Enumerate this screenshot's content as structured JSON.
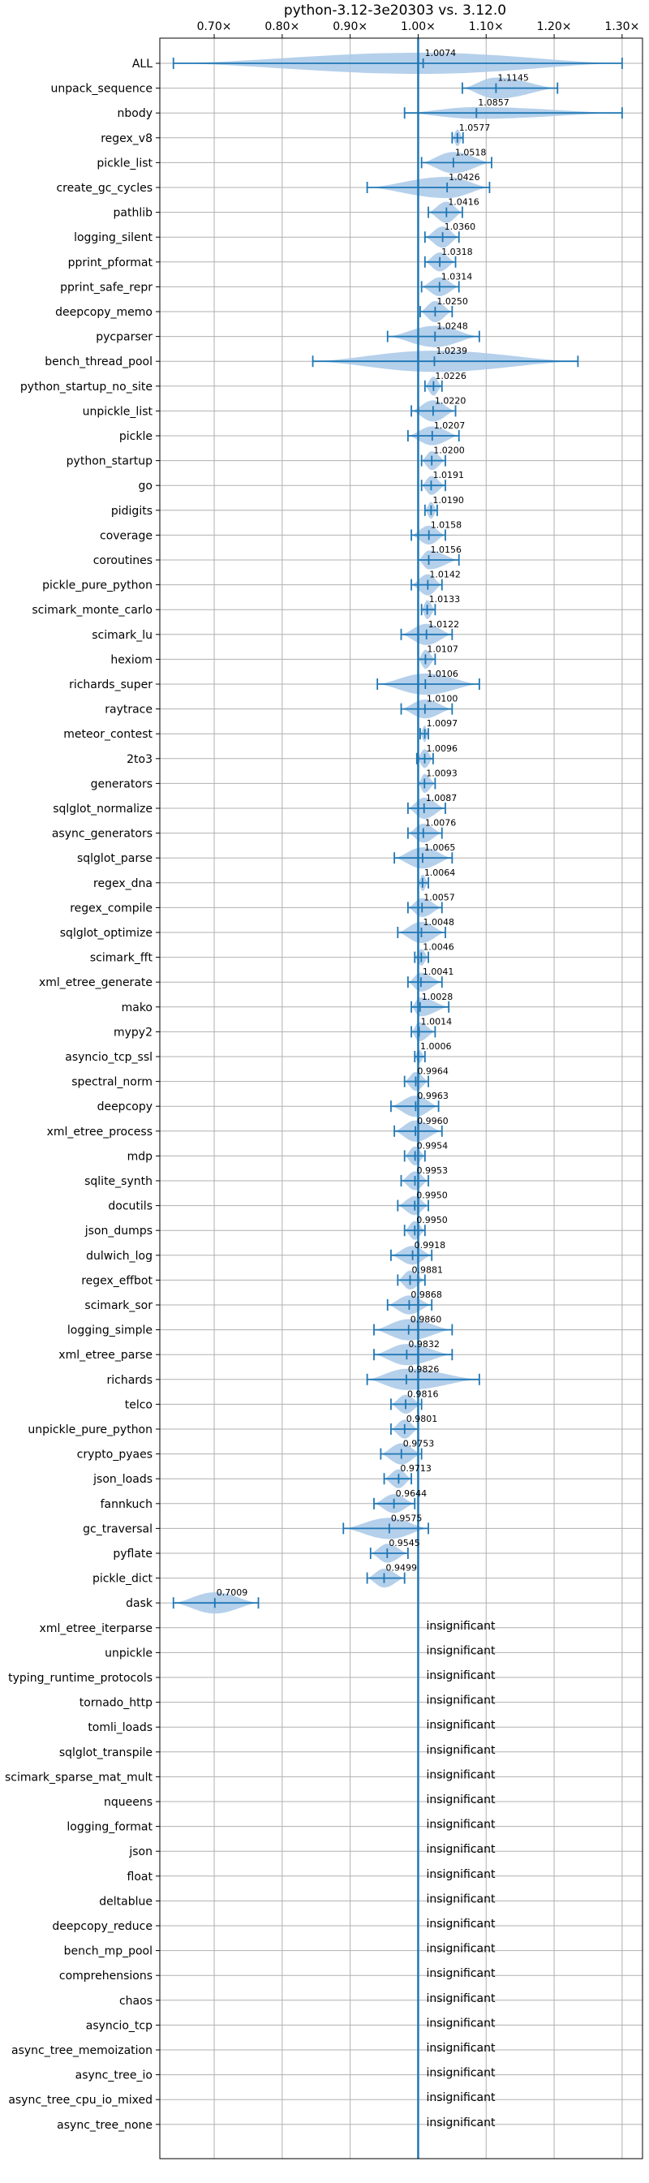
{
  "chart_data": {
    "type": "violin",
    "title": "python-3.12-3e20303 vs. 3.12.0",
    "xlabel": "",
    "ylabel": "",
    "xlim": [
      0.62,
      1.33
    ],
    "xticks": [
      0.7,
      0.8,
      0.9,
      1.0,
      1.1,
      1.2,
      1.3
    ],
    "xtick_labels": [
      "0.70×",
      "0.80×",
      "0.90×",
      "1.00×",
      "1.10×",
      "1.20×",
      "1.30×"
    ],
    "reference_line": 1.0,
    "grid": true,
    "tick_position": "top",
    "insignificant_label": "insignificant",
    "colors": {
      "violin": "#a8c8e8",
      "line": "#1f77b4",
      "grid": "#b0b0b0",
      "text": "#000000"
    },
    "benchmarks": [
      {
        "name": "ALL",
        "value": 1.0074,
        "label": "1.0074",
        "min": 0.64,
        "max": 1.3,
        "width": 0.9
      },
      {
        "name": "unpack_sequence",
        "value": 1.1145,
        "label": "1.1145",
        "min": 1.065,
        "max": 1.205,
        "width": 0.9
      },
      {
        "name": "nbody",
        "value": 1.0857,
        "label": "1.0857",
        "min": 0.98,
        "max": 1.3,
        "width": 0.5
      },
      {
        "name": "regex_v8",
        "value": 1.0577,
        "label": "1.0577",
        "min": 1.05,
        "max": 1.066,
        "width": 0.7
      },
      {
        "name": "pickle_list",
        "value": 1.0518,
        "label": "1.0518",
        "min": 1.005,
        "max": 1.108,
        "width": 0.9
      },
      {
        "name": "create_gc_cycles",
        "value": 1.0426,
        "label": "1.0426",
        "min": 0.925,
        "max": 1.105,
        "width": 0.9
      },
      {
        "name": "pathlib",
        "value": 1.0416,
        "label": "1.0416",
        "min": 1.015,
        "max": 1.065,
        "width": 0.9
      },
      {
        "name": "logging_silent",
        "value": 1.036,
        "label": "1.0360",
        "min": 1.01,
        "max": 1.06,
        "width": 0.9
      },
      {
        "name": "pprint_pformat",
        "value": 1.0318,
        "label": "1.0318",
        "min": 1.01,
        "max": 1.055,
        "width": 0.8
      },
      {
        "name": "pprint_safe_repr",
        "value": 1.0314,
        "label": "1.0314",
        "min": 1.005,
        "max": 1.06,
        "width": 0.8
      },
      {
        "name": "deepcopy_memo",
        "value": 1.025,
        "label": "1.0250",
        "min": 1.003,
        "max": 1.05,
        "width": 0.9
      },
      {
        "name": "pycparser",
        "value": 1.0248,
        "label": "1.0248",
        "min": 0.955,
        "max": 1.09,
        "width": 0.9
      },
      {
        "name": "bench_thread_pool",
        "value": 1.0239,
        "label": "1.0239",
        "min": 0.845,
        "max": 1.235,
        "width": 0.9
      },
      {
        "name": "python_startup_no_site",
        "value": 1.0226,
        "label": "1.0226",
        "min": 1.01,
        "max": 1.035,
        "width": 0.8
      },
      {
        "name": "unpickle_list",
        "value": 1.022,
        "label": "1.0220",
        "min": 0.99,
        "max": 1.055,
        "width": 0.9
      },
      {
        "name": "pickle",
        "value": 1.0207,
        "label": "1.0207",
        "min": 0.985,
        "max": 1.06,
        "width": 0.8
      },
      {
        "name": "python_startup",
        "value": 1.02,
        "label": "1.0200",
        "min": 1.005,
        "max": 1.04,
        "width": 0.8
      },
      {
        "name": "go",
        "value": 1.0191,
        "label": "1.0191",
        "min": 1.005,
        "max": 1.04,
        "width": 0.8
      },
      {
        "name": "pidigits",
        "value": 1.019,
        "label": "1.0190",
        "min": 1.01,
        "max": 1.028,
        "width": 0.7
      },
      {
        "name": "coverage",
        "value": 1.0158,
        "label": "1.0158",
        "min": 0.99,
        "max": 1.04,
        "width": 0.8
      },
      {
        "name": "coroutines",
        "value": 1.0156,
        "label": "1.0156",
        "min": 1.0,
        "max": 1.06,
        "width": 0.8
      },
      {
        "name": "pickle_pure_python",
        "value": 1.0142,
        "label": "1.0142",
        "min": 0.99,
        "max": 1.035,
        "width": 0.9
      },
      {
        "name": "scimark_monte_carlo",
        "value": 1.0133,
        "label": "1.0133",
        "min": 1.005,
        "max": 1.025,
        "width": 0.8
      },
      {
        "name": "scimark_lu",
        "value": 1.0122,
        "label": "1.0122",
        "min": 0.975,
        "max": 1.05,
        "width": 0.9
      },
      {
        "name": "hexiom",
        "value": 1.0107,
        "label": "1.0107",
        "min": 1.0,
        "max": 1.025,
        "width": 0.8
      },
      {
        "name": "richards_super",
        "value": 1.0106,
        "label": "1.0106",
        "min": 0.94,
        "max": 1.09,
        "width": 0.9
      },
      {
        "name": "raytrace",
        "value": 1.01,
        "label": "1.0100",
        "min": 0.975,
        "max": 1.05,
        "width": 0.8
      },
      {
        "name": "meteor_contest",
        "value": 1.0097,
        "label": "1.0097",
        "min": 1.003,
        "max": 1.015,
        "width": 0.7
      },
      {
        "name": "2to3",
        "value": 1.0096,
        "label": "1.0096",
        "min": 0.998,
        "max": 1.022,
        "width": 0.8
      },
      {
        "name": "generators",
        "value": 1.0093,
        "label": "1.0093",
        "min": 1.0,
        "max": 1.025,
        "width": 0.8
      },
      {
        "name": "sqlglot_normalize",
        "value": 1.0087,
        "label": "1.0087",
        "min": 0.985,
        "max": 1.04,
        "width": 0.9
      },
      {
        "name": "async_generators",
        "value": 1.0076,
        "label": "1.0076",
        "min": 0.985,
        "max": 1.035,
        "width": 0.8
      },
      {
        "name": "sqlglot_parse",
        "value": 1.0065,
        "label": "1.0065",
        "min": 0.965,
        "max": 1.05,
        "width": 0.9
      },
      {
        "name": "regex_dna",
        "value": 1.0064,
        "label": "1.0064",
        "min": 1.0,
        "max": 1.015,
        "width": 0.7
      },
      {
        "name": "regex_compile",
        "value": 1.0057,
        "label": "1.0057",
        "min": 0.985,
        "max": 1.035,
        "width": 0.8
      },
      {
        "name": "sqlglot_optimize",
        "value": 1.0048,
        "label": "1.0048",
        "min": 0.97,
        "max": 1.04,
        "width": 0.9
      },
      {
        "name": "scimark_fft",
        "value": 1.0046,
        "label": "1.0046",
        "min": 0.995,
        "max": 1.015,
        "width": 0.7
      },
      {
        "name": "xml_etree_generate",
        "value": 1.0041,
        "label": "1.0041",
        "min": 0.985,
        "max": 1.035,
        "width": 0.8
      },
      {
        "name": "mako",
        "value": 1.0028,
        "label": "1.0028",
        "min": 0.99,
        "max": 1.045,
        "width": 0.8
      },
      {
        "name": "mypy2",
        "value": 1.0014,
        "label": "1.0014",
        "min": 0.99,
        "max": 1.025,
        "width": 0.8
      },
      {
        "name": "asyncio_tcp_ssl",
        "value": 1.0006,
        "label": "1.0006",
        "min": 0.995,
        "max": 1.01,
        "width": 0.6
      },
      {
        "name": "spectral_norm",
        "value": 0.9964,
        "label": "0.9964",
        "min": 0.98,
        "max": 1.015,
        "width": 0.8
      },
      {
        "name": "deepcopy",
        "value": 0.9963,
        "label": "0.9963",
        "min": 0.96,
        "max": 1.03,
        "width": 0.9
      },
      {
        "name": "xml_etree_process",
        "value": 0.996,
        "label": "0.9960",
        "min": 0.965,
        "max": 1.035,
        "width": 0.9
      },
      {
        "name": "mdp",
        "value": 0.9954,
        "label": "0.9954",
        "min": 0.98,
        "max": 1.01,
        "width": 0.8
      },
      {
        "name": "sqlite_synth",
        "value": 0.9953,
        "label": "0.9953",
        "min": 0.975,
        "max": 1.015,
        "width": 0.8
      },
      {
        "name": "docutils",
        "value": 0.995,
        "label": "0.9950",
        "min": 0.97,
        "max": 1.015,
        "width": 0.8
      },
      {
        "name": "json_dumps",
        "value": 0.995,
        "label": "0.9950",
        "min": 0.98,
        "max": 1.01,
        "width": 0.8
      },
      {
        "name": "dulwich_log",
        "value": 0.9918,
        "label": "0.9918",
        "min": 0.96,
        "max": 1.02,
        "width": 0.8
      },
      {
        "name": "regex_effbot",
        "value": 0.9881,
        "label": "0.9881",
        "min": 0.97,
        "max": 1.01,
        "width": 0.8
      },
      {
        "name": "scimark_sor",
        "value": 0.9868,
        "label": "0.9868",
        "min": 0.955,
        "max": 1.02,
        "width": 0.8
      },
      {
        "name": "logging_simple",
        "value": 0.986,
        "label": "0.9860",
        "min": 0.935,
        "max": 1.05,
        "width": 0.9
      },
      {
        "name": "xml_etree_parse",
        "value": 0.9832,
        "label": "0.9832",
        "min": 0.935,
        "max": 1.05,
        "width": 0.9
      },
      {
        "name": "richards",
        "value": 0.9826,
        "label": "0.9826",
        "min": 0.925,
        "max": 1.09,
        "width": 0.9
      },
      {
        "name": "telco",
        "value": 0.9816,
        "label": "0.9816",
        "min": 0.96,
        "max": 1.005,
        "width": 0.8
      },
      {
        "name": "unpickle_pure_python",
        "value": 0.9801,
        "label": "0.9801",
        "min": 0.96,
        "max": 1.0,
        "width": 0.8
      },
      {
        "name": "crypto_pyaes",
        "value": 0.9753,
        "label": "0.9753",
        "min": 0.945,
        "max": 1.005,
        "width": 0.9
      },
      {
        "name": "json_loads",
        "value": 0.9713,
        "label": "0.9713",
        "min": 0.95,
        "max": 0.99,
        "width": 0.8
      },
      {
        "name": "fannkuch",
        "value": 0.9644,
        "label": "0.9644",
        "min": 0.935,
        "max": 0.995,
        "width": 0.8
      },
      {
        "name": "gc_traversal",
        "value": 0.9575,
        "label": "0.9575",
        "min": 0.89,
        "max": 1.015,
        "width": 0.9
      },
      {
        "name": "pyflate",
        "value": 0.9545,
        "label": "0.9545",
        "min": 0.93,
        "max": 0.985,
        "width": 0.8
      },
      {
        "name": "pickle_dict",
        "value": 0.9499,
        "label": "0.9499",
        "min": 0.925,
        "max": 0.98,
        "width": 0.8
      },
      {
        "name": "dask",
        "value": 0.7009,
        "label": "0.7009",
        "min": 0.64,
        "max": 0.765,
        "width": 0.9
      },
      {
        "name": "xml_etree_iterparse",
        "insignificant": true
      },
      {
        "name": "unpickle",
        "insignificant": true
      },
      {
        "name": "typing_runtime_protocols",
        "insignificant": true
      },
      {
        "name": "tornado_http",
        "insignificant": true
      },
      {
        "name": "tomli_loads",
        "insignificant": true
      },
      {
        "name": "sqlglot_transpile",
        "insignificant": true
      },
      {
        "name": "scimark_sparse_mat_mult",
        "insignificant": true
      },
      {
        "name": "nqueens",
        "insignificant": true
      },
      {
        "name": "logging_format",
        "insignificant": true
      },
      {
        "name": "json",
        "insignificant": true
      },
      {
        "name": "float",
        "insignificant": true
      },
      {
        "name": "deltablue",
        "insignificant": true
      },
      {
        "name": "deepcopy_reduce",
        "insignificant": true
      },
      {
        "name": "bench_mp_pool",
        "insignificant": true
      },
      {
        "name": "comprehensions",
        "insignificant": true
      },
      {
        "name": "chaos",
        "insignificant": true
      },
      {
        "name": "asyncio_tcp",
        "insignificant": true
      },
      {
        "name": "async_tree_memoization",
        "insignificant": true
      },
      {
        "name": "async_tree_io",
        "insignificant": true
      },
      {
        "name": "async_tree_cpu_io_mixed",
        "insignificant": true
      },
      {
        "name": "async_tree_none",
        "insignificant": true
      }
    ]
  }
}
